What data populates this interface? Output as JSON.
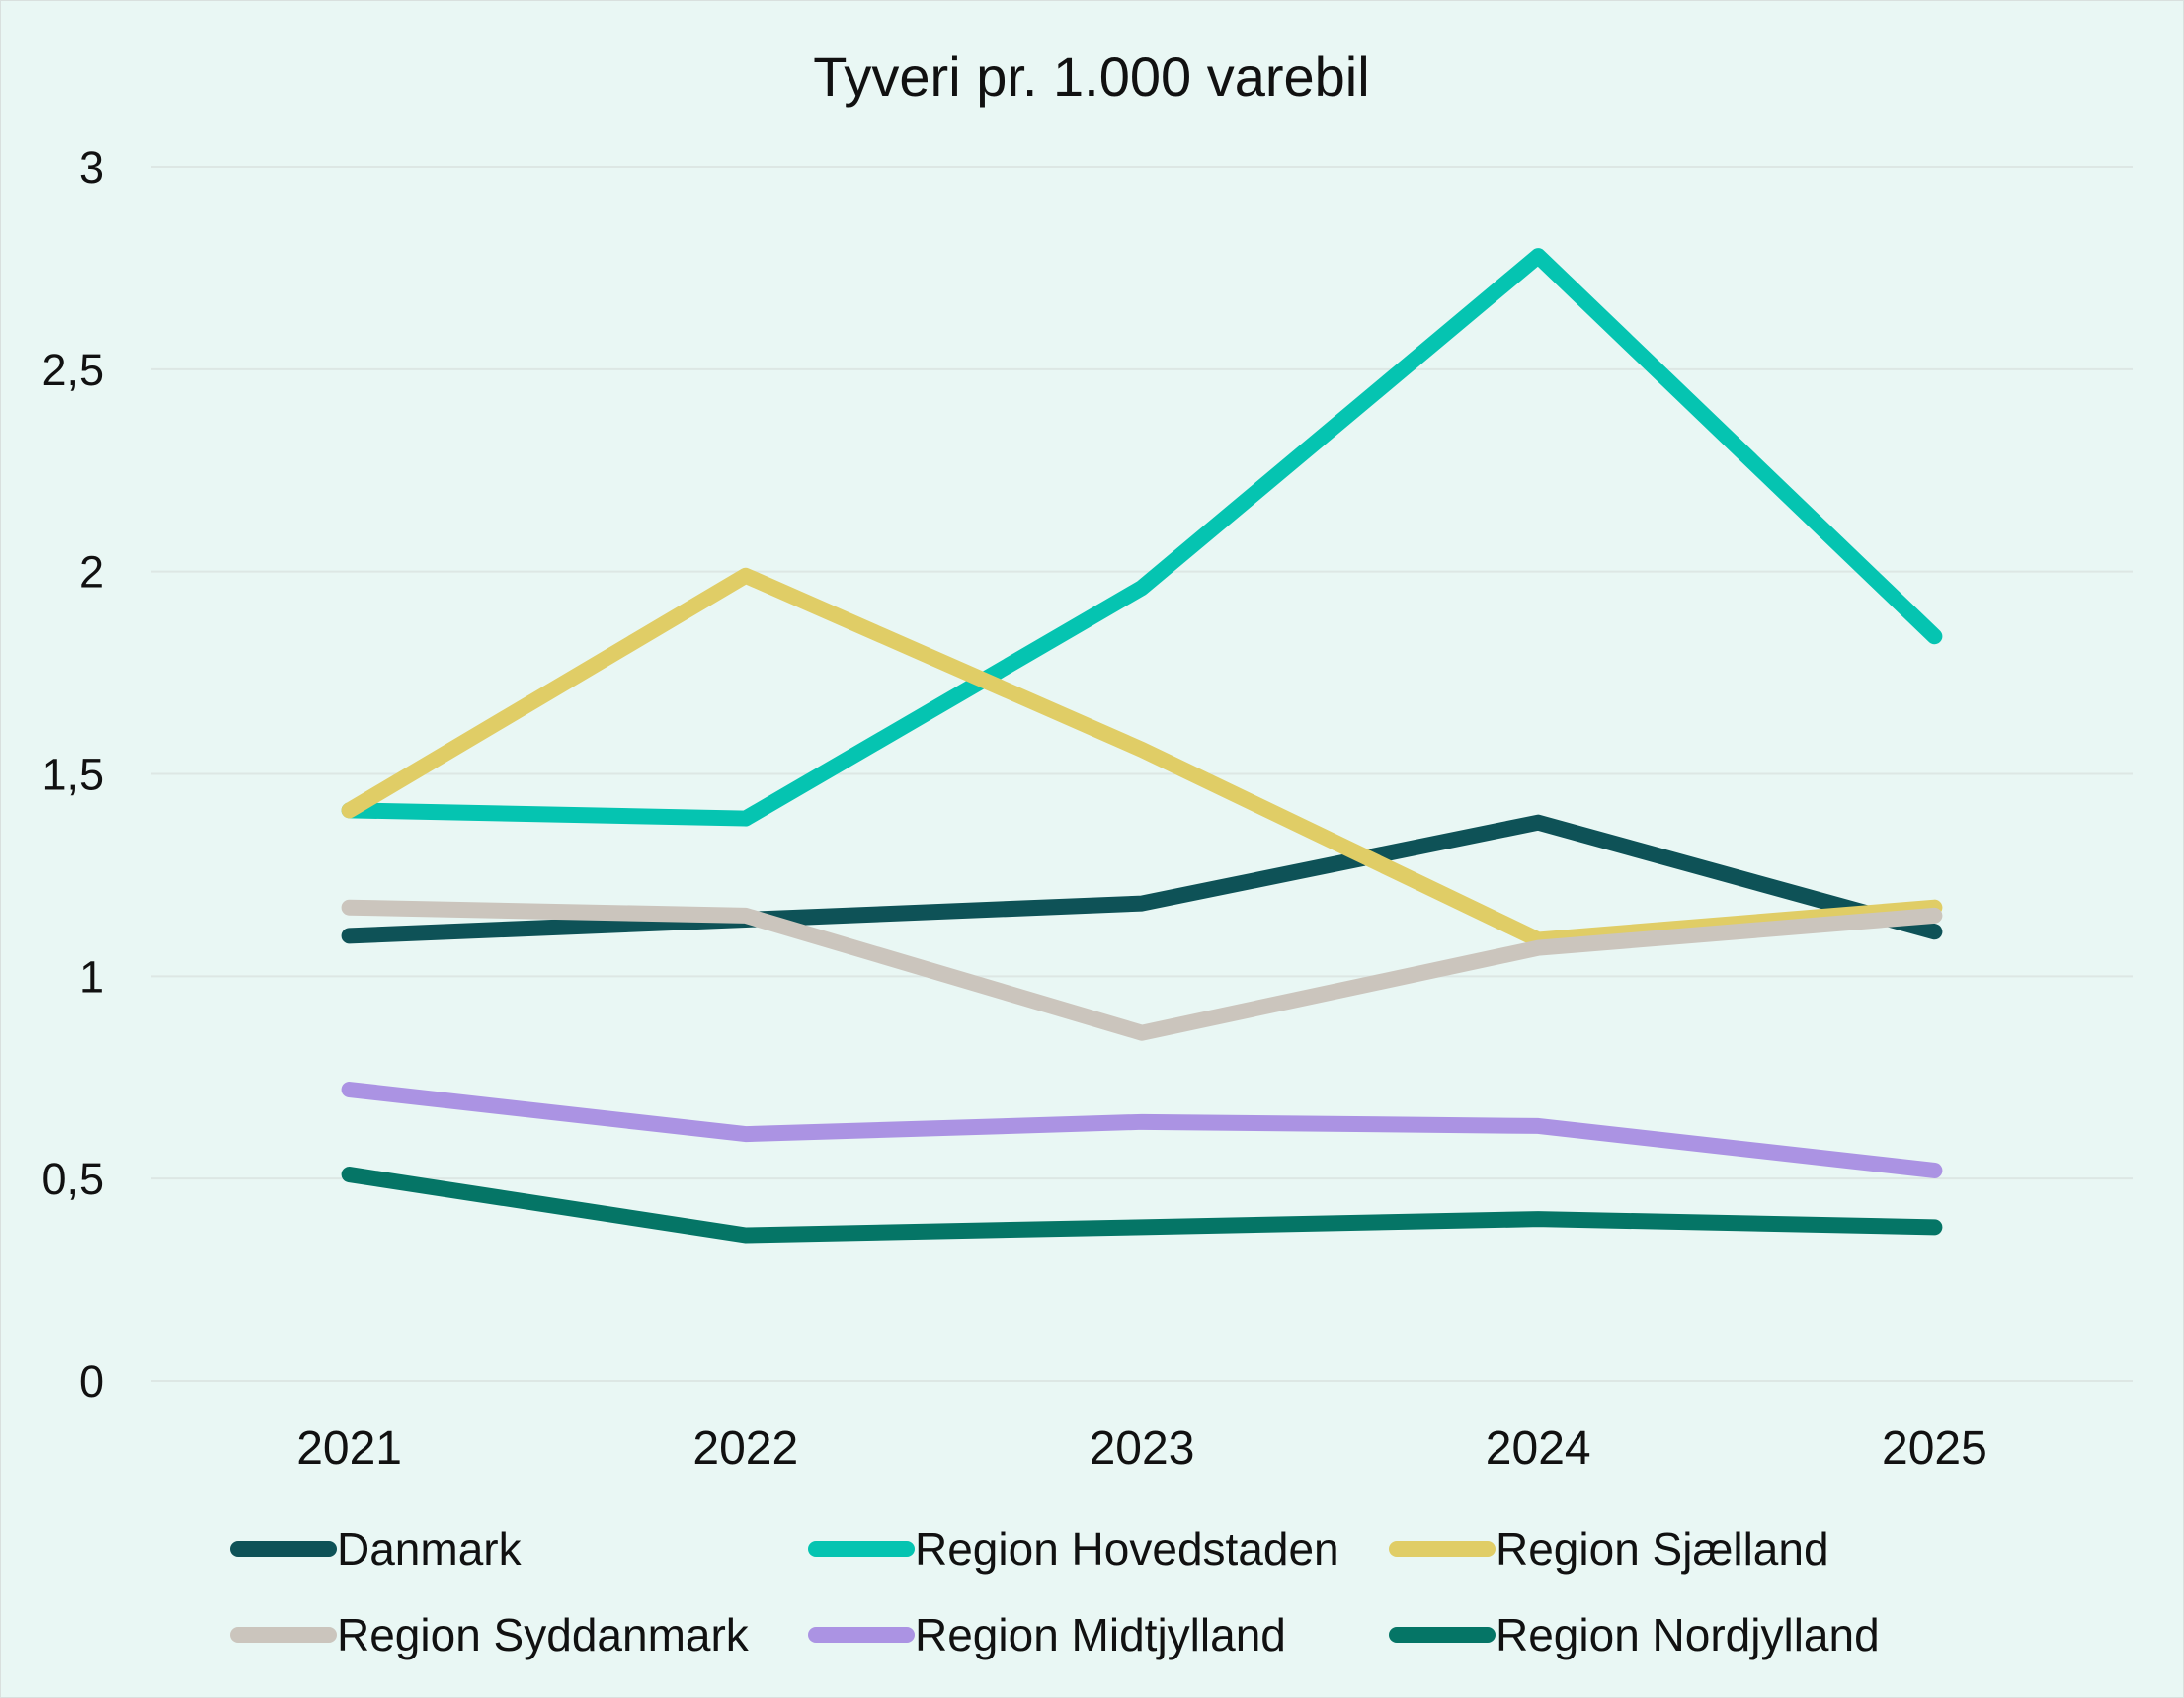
{
  "chart_data": {
    "type": "line",
    "title": "Tyveri pr. 1.000 varebil",
    "xlabel": "",
    "ylabel": "",
    "categories": [
      "2021",
      "2022",
      "2023",
      "2024",
      "2025"
    ],
    "ylim": [
      0,
      3
    ],
    "yticks": [
      0,
      0.5,
      1,
      1.5,
      2,
      2.5,
      3
    ],
    "ytick_labels": [
      "0",
      "0,5",
      "1",
      "1,5",
      "2",
      "2,5",
      "3"
    ],
    "grid": true,
    "legend_position": "bottom",
    "series": [
      {
        "name": "Danmark",
        "color": "#0e5257",
        "values": [
          1.1,
          1.14,
          1.18,
          1.38,
          1.11
        ]
      },
      {
        "name": "Region Hovedstaden",
        "color": "#05c4b1",
        "values": [
          1.41,
          1.39,
          1.96,
          2.78,
          1.84
        ]
      },
      {
        "name": "Region Sjælland",
        "color": "#e0cd66",
        "values": [
          1.41,
          1.99,
          1.56,
          1.09,
          1.17
        ]
      },
      {
        "name": "Region Syddanmark",
        "color": "#cbc5bd",
        "values": [
          1.17,
          1.15,
          0.86,
          1.07,
          1.15
        ]
      },
      {
        "name": "Region Midtjylland",
        "color": "#ab93e3",
        "values": [
          0.72,
          0.61,
          0.64,
          0.63,
          0.52
        ]
      },
      {
        "name": "Region Nordjylland",
        "color": "#057566",
        "values": [
          0.51,
          0.36,
          0.38,
          0.4,
          0.38
        ]
      }
    ]
  }
}
